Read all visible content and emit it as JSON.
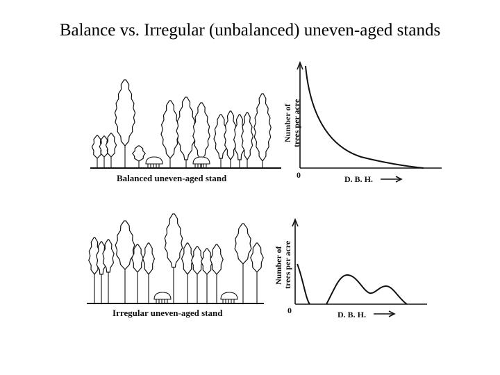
{
  "title": "Balance vs. Irregular (unbalanced) uneven-aged stands",
  "panels": {
    "balanced": {
      "caption": "Balanced uneven-aged stand",
      "ylabel_line1": "Number of",
      "ylabel_line2": "trees per acre",
      "origin": "0",
      "xlabel": "D. B. H."
    },
    "irregular": {
      "caption": "Irregular uneven-aged stand",
      "ylabel_line1": "Number of",
      "ylabel_line2": "trees per acre",
      "origin": "0",
      "xlabel": "D. B. H."
    }
  }
}
